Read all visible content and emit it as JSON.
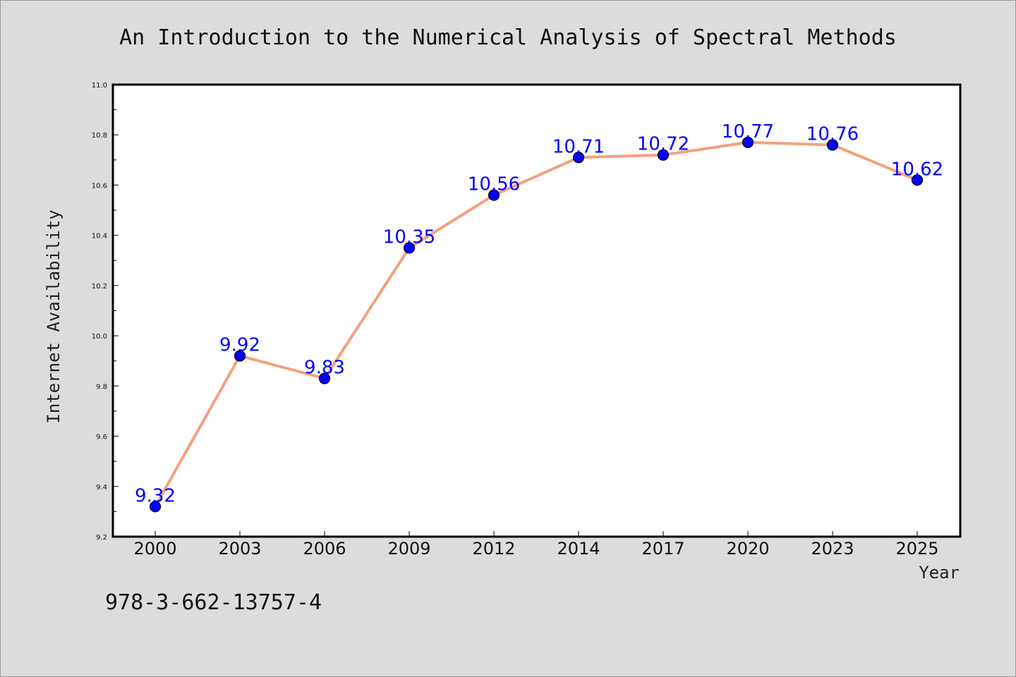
{
  "chart_data": {
    "type": "line",
    "title": "An Introduction to the Numerical Analysis of Spectral Methods",
    "xlabel": "Year",
    "ylabel": "Internet Availability",
    "categories": [
      "2000",
      "2003",
      "2006",
      "2009",
      "2012",
      "2014",
      "2017",
      "2020",
      "2023",
      "2025"
    ],
    "values": [
      9.32,
      9.92,
      9.83,
      10.35,
      10.56,
      10.71,
      10.72,
      10.77,
      10.76,
      10.62
    ],
    "data_labels": [
      "9.32",
      "9.92",
      "9.83",
      "10.35",
      "10.56",
      "10.71",
      "10.72",
      "10.77",
      "10.76",
      "10.62"
    ],
    "ylim": [
      9.2,
      11.0
    ],
    "yticks": [
      "9.2",
      "9.4",
      "9.6",
      "9.8",
      "10.0",
      "10.2",
      "10.4",
      "10.6",
      "10.8",
      "11.0"
    ],
    "grid": false,
    "colors": {
      "line": "#f4a07e",
      "marker": "#0000ff",
      "label": "#0000ff"
    }
  },
  "footer": {
    "isbn": "978-3-662-13757-4"
  }
}
